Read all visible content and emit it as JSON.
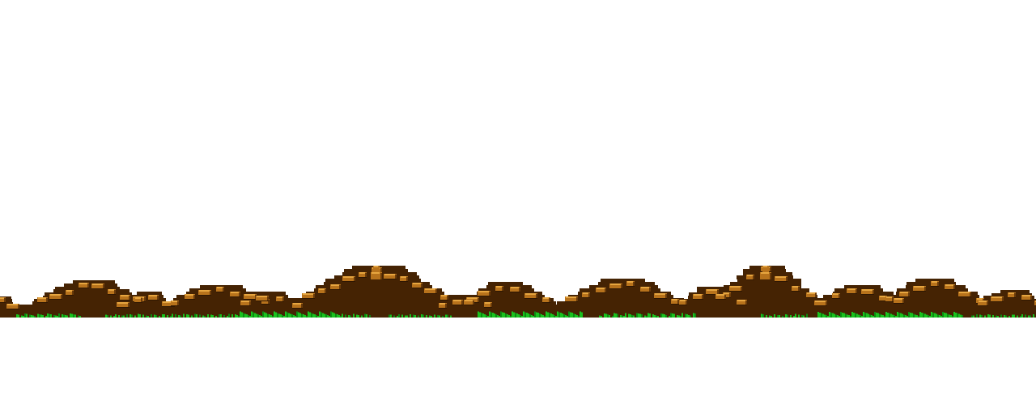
{
  "scene": {
    "kind": "side-scrolling parallax background",
    "background_color": "#ffffff",
    "palette": {
      "soil": "#452303",
      "soil_dark": "#2f1702",
      "rock_face": "#b8731c",
      "rock_highlight": "#e7a640",
      "rock_shadow": "#6a3b0a",
      "grass": "#19c21f",
      "grass_dark": "#0d8a13"
    },
    "layers": [
      {
        "name": "sky",
        "visible_text": ""
      },
      {
        "name": "rocky-hills"
      },
      {
        "name": "grass-strip"
      }
    ],
    "peaks": [
      {
        "name": "peak-1"
      },
      {
        "name": "peak-2"
      },
      {
        "name": "peak-3"
      },
      {
        "name": "peak-4"
      },
      {
        "name": "peak-5"
      },
      {
        "name": "peak-6"
      },
      {
        "name": "peak-7"
      },
      {
        "name": "peak-8"
      },
      {
        "name": "peak-9"
      },
      {
        "name": "peak-10"
      },
      {
        "name": "peak-11"
      },
      {
        "name": "peak-12"
      },
      {
        "name": "peak-13"
      }
    ]
  }
}
